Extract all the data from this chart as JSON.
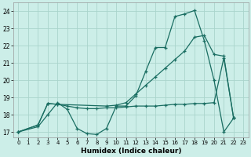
{
  "xlabel": "Humidex (Indice chaleur)",
  "background_color": "#cceee8",
  "line_color": "#1a6e62",
  "grid_color": "#aad4cc",
  "xlim": [
    -0.5,
    23.5
  ],
  "ylim": [
    16.7,
    24.5
  ],
  "xticks": [
    0,
    1,
    2,
    3,
    4,
    5,
    6,
    7,
    8,
    9,
    10,
    11,
    12,
    13,
    14,
    15,
    16,
    17,
    18,
    19,
    20,
    21,
    22,
    23
  ],
  "yticks": [
    17,
    18,
    19,
    20,
    21,
    22,
    23,
    24
  ],
  "curves": [
    {
      "x": [
        0,
        2,
        3,
        4,
        5,
        6,
        7,
        8,
        9,
        10,
        11,
        12,
        13,
        14,
        15,
        16,
        17,
        18,
        19,
        20,
        21,
        22
      ],
      "y": [
        17,
        17.3,
        18.0,
        18.7,
        18.3,
        17.2,
        16.9,
        16.85,
        17.2,
        18.5,
        18.5,
        19.1,
        20.5,
        21.9,
        21.9,
        23.7,
        23.85,
        24.05,
        22.3,
        20.0,
        17.0,
        17.8
      ]
    },
    {
      "x": [
        0,
        2,
        3,
        4,
        5,
        6,
        7,
        8,
        9,
        10,
        11,
        12,
        13,
        14,
        15,
        16,
        17,
        18,
        19,
        20,
        21,
        22
      ],
      "y": [
        17,
        17.4,
        18.65,
        18.6,
        18.5,
        18.4,
        18.35,
        18.35,
        18.4,
        18.4,
        18.45,
        18.5,
        18.5,
        18.5,
        18.55,
        18.6,
        18.6,
        18.65,
        18.65,
        18.7,
        21.3,
        17.8
      ]
    },
    {
      "x": [
        0,
        2,
        3,
        4,
        9,
        10,
        11,
        12,
        13,
        14,
        15,
        16,
        17,
        18,
        19,
        20,
        21,
        22
      ],
      "y": [
        17,
        17.4,
        18.65,
        18.6,
        18.5,
        18.55,
        18.7,
        19.2,
        19.7,
        20.2,
        20.7,
        21.2,
        21.7,
        22.5,
        22.6,
        21.5,
        21.4,
        17.8
      ]
    }
  ]
}
